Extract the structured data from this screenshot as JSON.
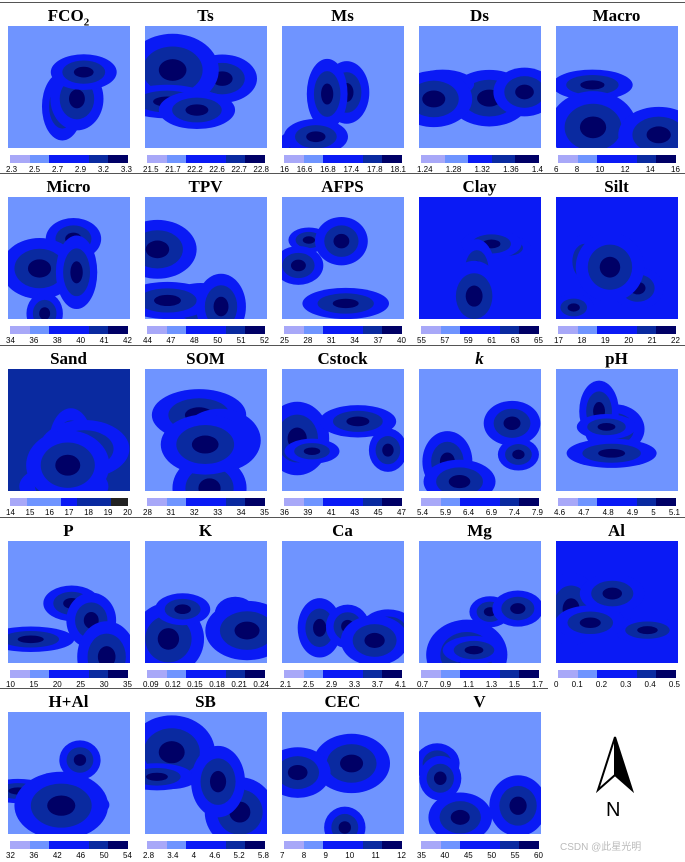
{
  "colors": {
    "c1": "#a8a8f8",
    "c2": "#6f94ff",
    "c3": "#0a1af5",
    "c4": "#0a2aa0",
    "c5": "#000066"
  },
  "panels": [
    {
      "title": "FCO",
      "sub": "2",
      "labels": [
        "2.3",
        "2.5",
        "2.7",
        "2.9",
        "3.2",
        "3.3"
      ]
    },
    {
      "title": "Ts",
      "labels": [
        "21.5",
        "21.7",
        "22.2",
        "22.6",
        "22.7",
        "22.8"
      ]
    },
    {
      "title": "Ms",
      "labels": [
        "16",
        "16.6",
        "16.8",
        "17.4",
        "17.8",
        "18.1"
      ]
    },
    {
      "title": "Ds",
      "labels": [
        "1.24",
        "1.28",
        "1.32",
        "1.36",
        "1.4"
      ]
    },
    {
      "title": "Macro",
      "labels": [
        "6",
        "8",
        "10",
        "12",
        "14",
        "16"
      ]
    },
    {
      "title": "Micro",
      "labels": [
        "34",
        "36",
        "38",
        "40",
        "41",
        "42"
      ]
    },
    {
      "title": "TPV",
      "labels": [
        "44",
        "47",
        "48",
        "50",
        "51",
        "52"
      ]
    },
    {
      "title": "AFPS",
      "labels": [
        "25",
        "28",
        "31",
        "34",
        "37",
        "40"
      ]
    },
    {
      "title": "Clay",
      "labels": [
        "55",
        "57",
        "59",
        "61",
        "63",
        "65"
      ]
    },
    {
      "title": "Silt",
      "labels": [
        "17",
        "18",
        "19",
        "20",
        "21",
        "22"
      ]
    },
    {
      "title": "Sand",
      "labels": [
        "14",
        "15",
        "16",
        "17",
        "18",
        "19",
        "20"
      ]
    },
    {
      "title": "SOM",
      "labels": [
        "28",
        "31",
        "32",
        "33",
        "34",
        "35"
      ]
    },
    {
      "title": "Cstock",
      "labels": [
        "36",
        "39",
        "41",
        "43",
        "45",
        "47"
      ]
    },
    {
      "title": "k",
      "italic": true,
      "labels": [
        "5.4",
        "5.9",
        "6.4",
        "6.9",
        "7.4",
        "7.9"
      ]
    },
    {
      "title": "pH",
      "labels": [
        "4.6",
        "4.7",
        "4.8",
        "4.9",
        "5",
        "5.1"
      ]
    },
    {
      "title": "P",
      "labels": [
        "10",
        "15",
        "20",
        "25",
        "30",
        "35"
      ]
    },
    {
      "title": "K",
      "labels": [
        "0.09",
        "0.12",
        "0.15",
        "0.18",
        "0.21",
        "0.24"
      ]
    },
    {
      "title": "Ca",
      "labels": [
        "2.1",
        "2.5",
        "2.9",
        "3.3",
        "3.7",
        "4.1"
      ]
    },
    {
      "title": "Mg",
      "labels": [
        "0.7",
        "0.9",
        "1.1",
        "1.3",
        "1.5",
        "1.7"
      ]
    },
    {
      "title": "Al",
      "labels": [
        "0",
        "0.1",
        "0.2",
        "0.3",
        "0.4",
        "0.5"
      ]
    },
    {
      "title": "H+Al",
      "labels": [
        "32",
        "36",
        "42",
        "46",
        "50",
        "54"
      ]
    },
    {
      "title": "SB",
      "labels": [
        "2.8",
        "3.4",
        "4",
        "4.6",
        "5.2",
        "5.8"
      ]
    },
    {
      "title": "CEC",
      "labels": [
        "7",
        "8",
        "9",
        "10",
        "11",
        "12"
      ]
    },
    {
      "title": "V",
      "labels": [
        "35",
        "40",
        "45",
        "50",
        "55",
        "60"
      ]
    }
  ],
  "north": {
    "label": "N",
    "icon": "north-arrow-icon"
  },
  "watermark": "CSDN @此星光明"
}
